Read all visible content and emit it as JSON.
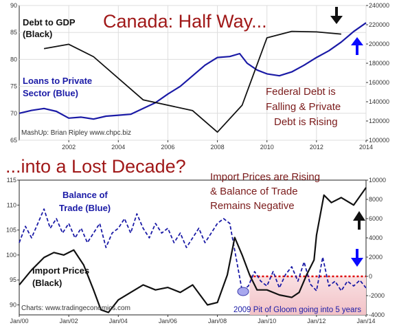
{
  "headline": {
    "top": "Canada: Half Way...",
    "bottom": "...into a Lost Decade?"
  },
  "colors": {
    "black_series": "#111111",
    "blue_series": "#1a1aa6",
    "title_red": "#a01818",
    "annotation_red": "#7a1a1a",
    "zero_line": "#dd0000",
    "negative_zone": "#f6d3d6",
    "blue_arrow": "#0a0aff"
  },
  "chart_data": [
    {
      "type": "line",
      "title": "Canada: Half Way...",
      "x_ticks": [
        "2002",
        "2004",
        "2006",
        "2008",
        "2010",
        "2012",
        "2014"
      ],
      "ylim_left": [
        65,
        90
      ],
      "ylim_right": [
        100000,
        240000
      ],
      "y_ticks_left": [
        "65",
        "70",
        "75",
        "80",
        "85",
        "90"
      ],
      "y_ticks_right": [
        "100000",
        "120000",
        "140000",
        "160000",
        "180000",
        "200000",
        "220000",
        "240000"
      ],
      "grid": true,
      "annotations": {
        "debt_label_1": "Debt to GDP",
        "debt_label_2": "(Black)",
        "loans_label_1": "Loans to Private",
        "loans_label_2": "Sector (Blue)",
        "note_1": "Federal Debt is",
        "note_2": "Falling & Private",
        "note_3": "Debt is Rising",
        "credit": "MashUp: Brian Ripley www.chpc.biz"
      },
      "series": [
        {
          "name": "Debt to GDP",
          "axis": "left",
          "x": [
            2001,
            2002,
            2003,
            2005,
            2007,
            2008,
            2009,
            2010,
            2011,
            2012,
            2013
          ],
          "values": [
            82,
            82.8,
            80.5,
            72.5,
            70.5,
            66.5,
            71.5,
            84,
            85.2,
            85.1,
            84.7
          ]
        },
        {
          "name": "Loans to Private Sector",
          "axis": "right",
          "x": [
            2000,
            2000.5,
            2001,
            2001.5,
            2002,
            2002.5,
            2003,
            2003.5,
            2004,
            2004.5,
            2005,
            2005.5,
            2006,
            2006.5,
            2007,
            2007.5,
            2008,
            2008.5,
            2008.9,
            2009.2,
            2009.6,
            2010,
            2010.5,
            2011,
            2011.5,
            2012,
            2012.5,
            2013,
            2013.5,
            2014
          ],
          "values": [
            128000,
            131000,
            133000,
            130000,
            123000,
            124000,
            122000,
            125000,
            126000,
            127000,
            133000,
            139000,
            148000,
            156000,
            167000,
            178000,
            186000,
            187000,
            190000,
            180000,
            173000,
            169000,
            167000,
            171000,
            178000,
            186000,
            193000,
            202000,
            213000,
            222000
          ]
        }
      ]
    },
    {
      "type": "line",
      "title": "...into a Lost Decade?",
      "x_ticks": [
        "Jan/00",
        "Jan/02",
        "Jan/04",
        "Jan/06",
        "Jan/08",
        "Jan/10",
        "Jan/12",
        "Jan/14"
      ],
      "ylim_left": [
        88,
        115
      ],
      "ylim_right": [
        -4000,
        10000
      ],
      "y_ticks_left": [
        "90",
        "95",
        "100",
        "105",
        "110",
        "115"
      ],
      "y_ticks_right": [
        "-4000",
        "-2000",
        "0",
        "2000",
        "4000",
        "6000",
        "8000",
        "10000"
      ],
      "grid": false,
      "annotations": {
        "bal_label_1": "Balance of",
        "bal_label_2": "Trade (Blue)",
        "imp_label_1": "Import Prices",
        "imp_label_2": "(Black)",
        "note_1": "Import Prices are Rising",
        "note_2": "& Balance of Trade",
        "note_3": "Remains Negative",
        "pit": "2009 Pit of Gloom going into 5 years",
        "credit": "Charts: www.tradingeconomics.com"
      },
      "series": [
        {
          "name": "Import Prices",
          "axis": "left",
          "x": [
            2000,
            2000.5,
            2001,
            2001.4,
            2001.8,
            2002.2,
            2002.6,
            2003,
            2003.3,
            2003.6,
            2004,
            2004.5,
            2005,
            2005.5,
            2006,
            2006.5,
            2007,
            2007.3,
            2007.6,
            2008,
            2008.4,
            2008.7,
            2009,
            2009.3,
            2009.6,
            2010,
            2010.5,
            2011,
            2011.3,
            2011.6,
            2011.9,
            2012,
            2012.3,
            2012.6,
            2013,
            2013.5,
            2014
          ],
          "values": [
            94,
            97,
            99.5,
            100.5,
            100,
            101,
            98,
            93,
            89,
            88.5,
            91,
            92.5,
            94,
            93,
            93.5,
            92.5,
            94,
            92,
            90,
            90.5,
            96,
            103.5,
            100,
            96,
            93,
            93,
            92,
            91.5,
            92.5,
            96,
            99,
            104,
            112,
            110.5,
            111.5,
            110,
            113.5
          ]
        },
        {
          "name": "Balance of Trade",
          "axis": "right",
          "x": [
            2000,
            2000.25,
            2000.5,
            2000.75,
            2001,
            2001.25,
            2001.5,
            2001.75,
            2002,
            2002.25,
            2002.5,
            2002.75,
            2003,
            2003.25,
            2003.5,
            2003.75,
            2004,
            2004.25,
            2004.5,
            2004.75,
            2005,
            2005.25,
            2005.5,
            2005.75,
            2006,
            2006.25,
            2006.5,
            2006.75,
            2007,
            2007.25,
            2007.5,
            2007.75,
            2008,
            2008.25,
            2008.5,
            2008.75,
            2009,
            2009.25,
            2009.5,
            2009.75,
            2010,
            2010.25,
            2010.5,
            2010.75,
            2011,
            2011.25,
            2011.5,
            2011.75,
            2012,
            2012.25,
            2012.5,
            2012.75,
            2013,
            2013.25,
            2013.5,
            2013.75,
            2014
          ],
          "values": [
            3500,
            5200,
            4000,
            5500,
            7000,
            5000,
            6000,
            4500,
            5500,
            4000,
            5000,
            3500,
            4500,
            5500,
            3000,
            4500,
            5000,
            6000,
            4500,
            6500,
            5000,
            4000,
            5500,
            4500,
            5000,
            3500,
            4500,
            3000,
            4000,
            5000,
            3500,
            4500,
            5500,
            6000,
            5500,
            2000,
            -1500,
            -1000,
            500,
            -500,
            -1000,
            500,
            -1200,
            200,
            1000,
            -500,
            1500,
            -800,
            -1500,
            2000,
            -1000,
            -500,
            -1500,
            -500,
            -1000,
            -400,
            -1200
          ]
        }
      ]
    }
  ]
}
